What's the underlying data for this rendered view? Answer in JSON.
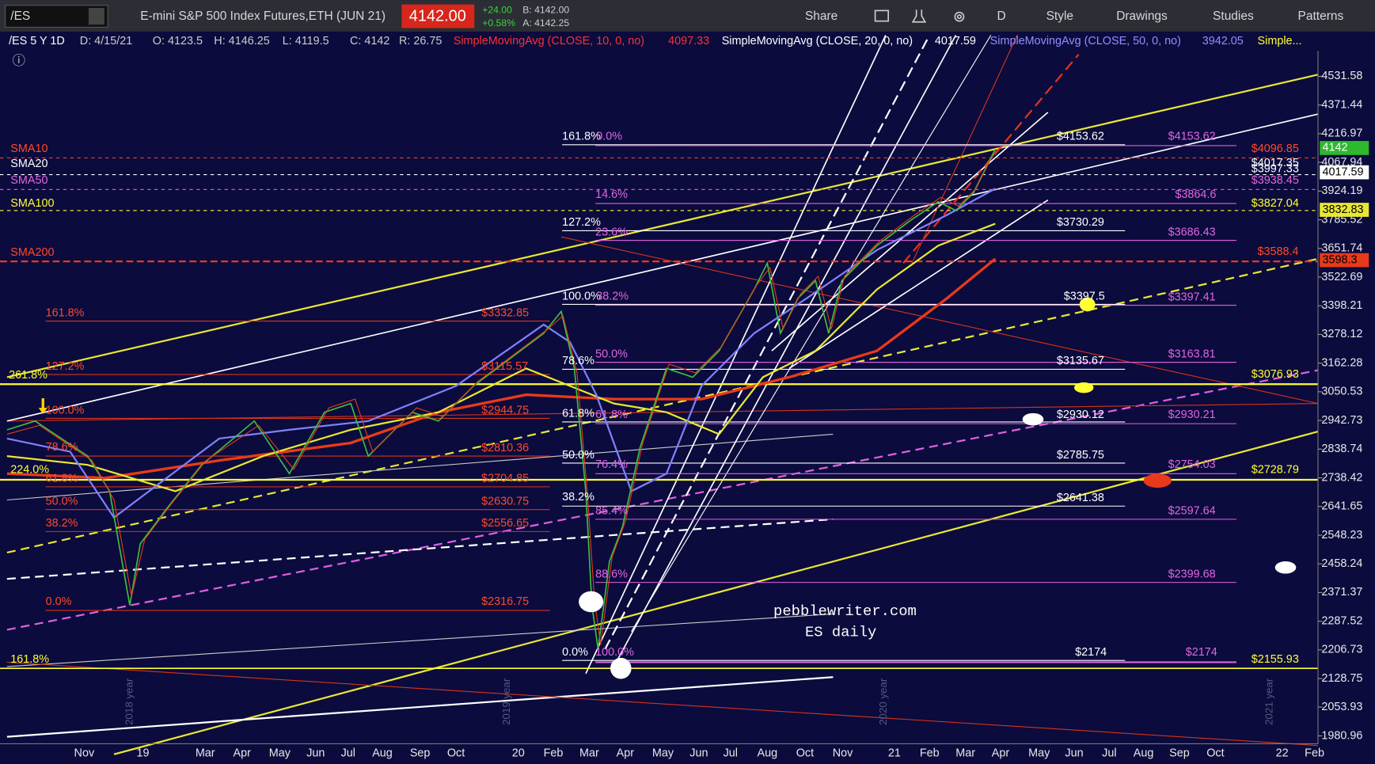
{
  "toolbar": {
    "symbol": "/ES",
    "instrument": "E-mini S&P 500 Index Futures,ETH (JUN 21)",
    "price": "4142.00",
    "change": "+24.00",
    "change_pct": "+0.58%",
    "bid": "B: 4142.00",
    "ask": "A: 4142.25",
    "timeframe": "D",
    "buttons": [
      "Share",
      "Style",
      "Drawings",
      "Studies",
      "Patterns"
    ]
  },
  "legend": {
    "chart": "/ES 5 Y 1D",
    "date": "D: 4/15/21",
    "open": "O: 4123.5",
    "high": "H: 4146.25",
    "low": "L: 4119.5",
    "close": "C: 4142",
    "range": "R: 26.75",
    "studies": [
      {
        "name": "SimpleMovingAvg (CLOSE, 10, 0, no)",
        "value": "4097.33"
      },
      {
        "name": "SimpleMovingAvg (CLOSE, 20, 0, no)",
        "value": "4017.59"
      },
      {
        "name": "SimpleMovingAvg (CLOSE, 50, 0, no)",
        "value": "3942.05"
      },
      {
        "name": "Simple..."
      }
    ]
  },
  "price_axis": {
    "ticks": [
      4531.58,
      4371.44,
      4216.97,
      4067.94,
      3924.19,
      3785.52,
      3651.74,
      3522.69,
      3398.21,
      3278.12,
      3162.28,
      3050.53,
      2942.73,
      2838.74,
      2738.42,
      2641.65,
      2548.23,
      2458.24,
      2371.37,
      2287.52,
      2206.73,
      2128.75,
      2053.93,
      1980.96
    ],
    "badges": [
      4142,
      4017.59,
      3832.83,
      3598.3
    ]
  },
  "date_axis": [
    "Nov",
    "19",
    "Mar",
    "Apr",
    "May",
    "Jun",
    "Jul",
    "Aug",
    "Sep",
    "Oct",
    "20",
    "Feb",
    "Mar",
    "Apr",
    "May",
    "Jun",
    "Jul",
    "Aug",
    "Oct",
    "Nov",
    "21",
    "Feb",
    "Mar",
    "Apr",
    "May",
    "Jun",
    "Jul",
    "Aug",
    "Sep",
    "Oct",
    "22",
    "Feb"
  ],
  "year_labels": [
    "2018 year",
    "2019 year",
    "2020 year",
    "2021 year"
  ],
  "sma_labels": [
    "SMA10",
    "SMA20",
    "SMA50",
    "SMA100",
    "SMA200"
  ],
  "annotations": [
    "161.8%",
    "0.0%",
    "$4153.62",
    "$4153.62",
    "$4096.85",
    "$4017.35",
    "$3997.33",
    "$3938.45",
    "14.6%",
    "$3864.6",
    "$3827.04",
    "127.2%",
    "23.6%",
    "$3730.29",
    "$3686.43",
    "$3588.4",
    "100.0%",
    "38.2%",
    "$3397.5",
    "$3397.41",
    "161.8%",
    "$3332.85",
    "50.0%",
    "78.6%",
    "$3135.67",
    "$3163.81",
    "127.2%",
    "$3115.57",
    "261.8%",
    "$3076.93",
    "100.0%",
    "$2944.75",
    "61.8%",
    "61.8%",
    "$2930.12",
    "$2930.21",
    "78.6%",
    "$2810.36",
    "50.0%",
    "76.4%",
    "$2785.75",
    "$2754.03",
    "$2728.79",
    "224.0%",
    "61.8%",
    "$2704.85",
    "38.2%",
    "$2641.38",
    "85.4%",
    "$2597.64",
    "50.0%",
    "$2630.75",
    "38.2%",
    "$2556.65",
    "88.6%",
    "$2399.68",
    "0.0%",
    "$2316.75",
    "0.0%",
    "100.0%",
    "$2174",
    "$2174",
    "161.8%",
    "$2155.93"
  ],
  "watermark": [
    "pebblewriter.com",
    "ES daily"
  ]
}
